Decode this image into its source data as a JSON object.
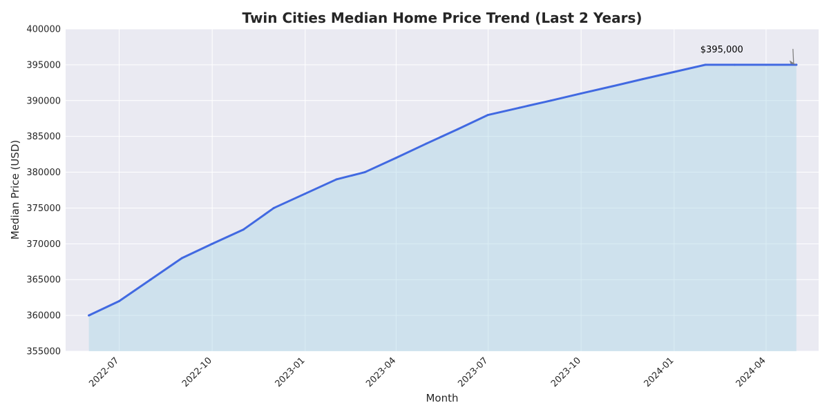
{
  "colors": {
    "plot_background": "#EAEAF2",
    "grid": "#FFFFFF",
    "line": "#4169E1",
    "fill": "#ADD8E6",
    "annotation_arrow": "#808080"
  },
  "chart_data": {
    "type": "area",
    "title": "Twin Cities Median Home Price Trend (Last 2 Years)",
    "xlabel": "Month",
    "ylabel": "Median Price (USD)",
    "xlim": [
      "2022-05-09",
      "2024-05-23"
    ],
    "ylim": [
      355000,
      400000
    ],
    "grid": true,
    "x_ticks": [
      "2022-07",
      "2022-10",
      "2023-01",
      "2023-04",
      "2023-07",
      "2023-10",
      "2024-01",
      "2024-04"
    ],
    "y_ticks": [
      355000,
      360000,
      365000,
      370000,
      375000,
      380000,
      385000,
      390000,
      395000,
      400000
    ],
    "series": [
      {
        "x": [
          "2022-06",
          "2022-07",
          "2022-08",
          "2022-09",
          "2022-10",
          "2022-11",
          "2022-12",
          "2023-01",
          "2023-02",
          "2023-03",
          "2023-04",
          "2023-05",
          "2023-06",
          "2023-07",
          "2023-08",
          "2023-09",
          "2023-10",
          "2023-11",
          "2023-12",
          "2024-01",
          "2024-02",
          "2024-03",
          "2024-04",
          "2024-05"
        ],
        "values": [
          360000,
          362000,
          365000,
          368000,
          370000,
          372000,
          375000,
          377000,
          379000,
          380000,
          382000,
          384000,
          386000,
          388000,
          389000,
          390000,
          391000,
          392000,
          393000,
          394000,
          395000,
          395000,
          395000,
          395000
        ]
      }
    ],
    "annotations": [
      {
        "text": "$395,000",
        "x": "2024-05",
        "y": 395000
      }
    ]
  }
}
